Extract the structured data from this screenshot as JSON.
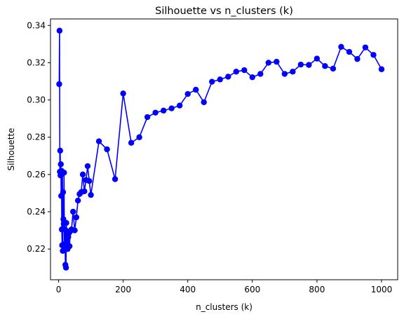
{
  "chart_data": {
    "type": "line",
    "title": "Silhouette vs n_clusters (k)",
    "xlabel": "n_clusters (k)",
    "ylabel": "Silhouette",
    "xlim": [
      -25,
      1050
    ],
    "ylim": [
      0.2035,
      0.3435
    ],
    "x_ticks": [
      0,
      200,
      400,
      600,
      800,
      1000
    ],
    "y_ticks": [
      0.22,
      0.24,
      0.26,
      0.28,
      0.3,
      0.32,
      0.34
    ],
    "grid": false,
    "series": [
      {
        "color": "#0000ff",
        "marker": "circle",
        "x": [
          2,
          3,
          4,
          5,
          6,
          7,
          8,
          9,
          10,
          11,
          12,
          13,
          14,
          15,
          16,
          17,
          18,
          19,
          20,
          21,
          22,
          23,
          24,
          25,
          26,
          27,
          28,
          29,
          30,
          32,
          34,
          36,
          40,
          45,
          50,
          55,
          60,
          65,
          70,
          75,
          80,
          85,
          90,
          95,
          100,
          125,
          150,
          175,
          200,
          225,
          250,
          275,
          300,
          325,
          350,
          375,
          400,
          425,
          450,
          475,
          500,
          525,
          550,
          575,
          600,
          625,
          650,
          675,
          700,
          725,
          750,
          775,
          800,
          825,
          850,
          875,
          900,
          925,
          950,
          975,
          1000
        ],
        "y": [
          0.3085,
          0.3372,
          0.2615,
          0.2728,
          0.2595,
          0.2655,
          0.2485,
          0.262,
          0.2305,
          0.222,
          0.2605,
          0.219,
          0.2505,
          0.236,
          0.2335,
          0.261,
          0.2215,
          0.22,
          0.2305,
          0.2115,
          0.223,
          0.21,
          0.234,
          0.223,
          0.2295,
          0.228,
          0.22,
          0.2215,
          0.2265,
          0.2285,
          0.2215,
          0.2295,
          0.2305,
          0.24,
          0.23,
          0.237,
          0.246,
          0.2495,
          0.2505,
          0.26,
          0.251,
          0.257,
          0.2645,
          0.2565,
          0.249,
          0.2778,
          0.2735,
          0.2575,
          0.3035,
          0.277,
          0.28,
          0.2908,
          0.2932,
          0.2943,
          0.2955,
          0.297,
          0.3032,
          0.3055,
          0.2988,
          0.3098,
          0.311,
          0.3125,
          0.3152,
          0.316,
          0.3122,
          0.314,
          0.32,
          0.3205,
          0.314,
          0.3152,
          0.319,
          0.3188,
          0.3222,
          0.3182,
          0.3168,
          0.3285,
          0.3258,
          0.322,
          0.3282,
          0.3242,
          0.3165
        ]
      }
    ]
  }
}
